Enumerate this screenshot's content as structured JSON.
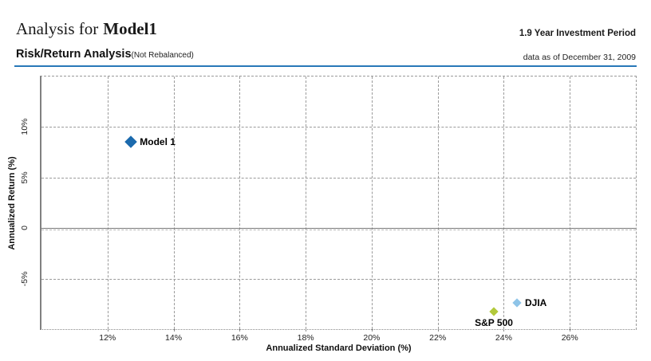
{
  "header": {
    "title_prefix": "Analysis for",
    "title_model": "Model1",
    "investment_period": "1.9 Year Investment Period",
    "section_title": "Risk/Return Analysis",
    "section_subtitle": "(Not Rebalanced)",
    "data_as_of": "data as of December 31, 2009",
    "divider_color": "#2878b8"
  },
  "chart_data": {
    "type": "scatter",
    "xlabel": "Annualized Standard Deviation (%)",
    "ylabel": "Annualized Return (%)",
    "xlim": [
      10,
      28
    ],
    "ylim": [
      -10,
      15
    ],
    "grid": "dashed",
    "legend_position": "none",
    "x_ticks": [
      {
        "value": 12,
        "label": "12%"
      },
      {
        "value": 14,
        "label": "14%"
      },
      {
        "value": 16,
        "label": "16%"
      },
      {
        "value": 18,
        "label": "18%"
      },
      {
        "value": 20,
        "label": "20%"
      },
      {
        "value": 22,
        "label": "22%"
      },
      {
        "value": 24,
        "label": "24%"
      },
      {
        "value": 26,
        "label": "26%"
      }
    ],
    "y_ticks": [
      {
        "value": 10,
        "label": "10%"
      },
      {
        "value": 5,
        "label": "5%"
      },
      {
        "value": 0,
        "label": "0"
      },
      {
        "value": -5,
        "label": "-5%"
      }
    ],
    "zero_line": true,
    "series": [
      {
        "name": "Model 1",
        "x": 12.7,
        "y": 8.5,
        "color": "#1b6aad",
        "marker": "diamond",
        "size": 11,
        "label_pos": "right"
      },
      {
        "name": "S&P 500",
        "x": 23.7,
        "y": -8.3,
        "color": "#b2c93b",
        "marker": "diamond",
        "size": 8,
        "label_pos": "below"
      },
      {
        "name": "DJIA",
        "x": 24.4,
        "y": -7.4,
        "color": "#8ec4e8",
        "marker": "diamond",
        "size": 8,
        "label_pos": "right"
      }
    ]
  }
}
